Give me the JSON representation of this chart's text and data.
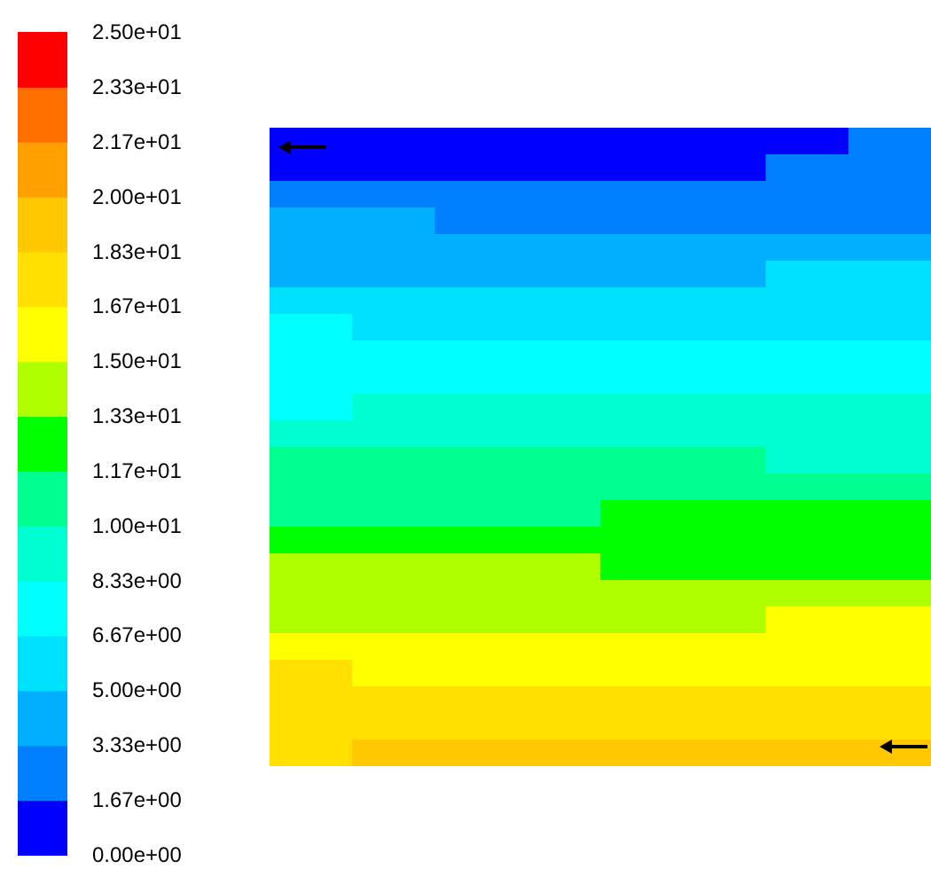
{
  "chart_data": {
    "type": "heatmap",
    "categories": [
      null,
      null,
      null,
      null,
      null,
      null,
      null,
      null
    ],
    "y_categories": [
      null,
      null,
      null,
      null,
      null,
      null,
      null,
      null,
      null,
      null,
      null,
      null,
      null,
      null,
      null,
      null,
      null,
      null,
      null,
      null,
      null,
      null,
      null,
      null
    ],
    "cells": [
      [
        0.8,
        0.8,
        0.8,
        0.8,
        0.8,
        0.8,
        0.8,
        2.5
      ],
      [
        0.8,
        0.8,
        0.8,
        0.8,
        0.8,
        0.8,
        2.5,
        2.5
      ],
      [
        2.5,
        2.5,
        2.5,
        2.5,
        2.5,
        2.5,
        2.5,
        2.5
      ],
      [
        4.2,
        4.2,
        2.5,
        2.5,
        2.5,
        2.5,
        2.5,
        2.5
      ],
      [
        4.2,
        4.2,
        4.2,
        4.2,
        4.2,
        4.2,
        4.2,
        4.2
      ],
      [
        4.2,
        4.2,
        4.2,
        4.2,
        4.2,
        4.2,
        5.8,
        5.8
      ],
      [
        5.8,
        5.8,
        5.8,
        5.8,
        5.8,
        5.8,
        5.8,
        5.8
      ],
      [
        7.5,
        5.8,
        5.8,
        5.8,
        5.8,
        5.8,
        5.8,
        5.8
      ],
      [
        7.5,
        7.5,
        7.5,
        7.5,
        7.5,
        7.5,
        7.5,
        7.5
      ],
      [
        7.5,
        7.5,
        7.5,
        7.5,
        7.5,
        7.5,
        7.5,
        7.5
      ],
      [
        7.5,
        9.2,
        9.2,
        9.2,
        9.2,
        9.2,
        9.2,
        9.2
      ],
      [
        9.2,
        9.2,
        9.2,
        9.2,
        9.2,
        9.2,
        9.2,
        9.2
      ],
      [
        10.8,
        10.8,
        10.8,
        10.8,
        10.8,
        10.8,
        9.2,
        9.2
      ],
      [
        10.8,
        10.8,
        10.8,
        10.8,
        10.8,
        10.8,
        10.8,
        10.8
      ],
      [
        10.8,
        10.8,
        10.8,
        10.8,
        12.5,
        12.5,
        12.5,
        12.5
      ],
      [
        12.5,
        12.5,
        12.5,
        12.5,
        12.5,
        12.5,
        12.5,
        12.5
      ],
      [
        14.2,
        14.2,
        14.2,
        14.2,
        12.5,
        12.5,
        12.5,
        12.5
      ],
      [
        14.2,
        14.2,
        14.2,
        14.2,
        14.2,
        14.2,
        14.2,
        14.2
      ],
      [
        14.2,
        14.2,
        14.2,
        14.2,
        14.2,
        14.2,
        15.8,
        15.8
      ],
      [
        15.8,
        15.8,
        15.8,
        15.8,
        15.8,
        15.8,
        15.8,
        15.8
      ],
      [
        17.5,
        15.8,
        15.8,
        15.8,
        15.8,
        15.8,
        15.8,
        15.8
      ],
      [
        17.5,
        17.5,
        17.5,
        17.5,
        17.5,
        17.5,
        17.5,
        17.5
      ],
      [
        17.5,
        17.5,
        17.5,
        17.5,
        17.5,
        17.5,
        17.5,
        17.5
      ],
      [
        17.5,
        19.2,
        19.2,
        19.2,
        19.2,
        19.2,
        19.2,
        19.2
      ]
    ],
    "colors": [
      "#0000ff",
      "#0080ff",
      "#00b0ff",
      "#00e0ff",
      "#00ffff",
      "#00ffd0",
      "#00ff90",
      "#00ff00",
      "#b0ff00",
      "#ffff00",
      "#ffe000",
      "#ffc800",
      "#ffa000",
      "#ff7000",
      "#ff0000"
    ],
    "clim": [
      0,
      25
    ],
    "cticks": [
      {
        "value": 0,
        "label": "0.00e+00"
      },
      {
        "value": 1.67,
        "label": "1.67e+00"
      },
      {
        "value": 3.33,
        "label": "3.33e+00"
      },
      {
        "value": 5,
        "label": "5.00e+00"
      },
      {
        "value": 6.67,
        "label": "6.67e+00"
      },
      {
        "value": 8.33,
        "label": "8.33e+00"
      },
      {
        "value": 10,
        "label": "1.00e+01"
      },
      {
        "value": 11.67,
        "label": "1.17e+01"
      },
      {
        "value": 13.33,
        "label": "1.33e+01"
      },
      {
        "value": 15,
        "label": "1.50e+01"
      },
      {
        "value": 16.67,
        "label": "1.67e+01"
      },
      {
        "value": 18.33,
        "label": "1.83e+01"
      },
      {
        "value": 20,
        "label": "2.00e+01"
      },
      {
        "value": 21.67,
        "label": "2.17e+01"
      },
      {
        "value": 23.33,
        "label": "2.33e+01"
      },
      {
        "value": 25,
        "label": "2.50e+01"
      }
    ]
  }
}
